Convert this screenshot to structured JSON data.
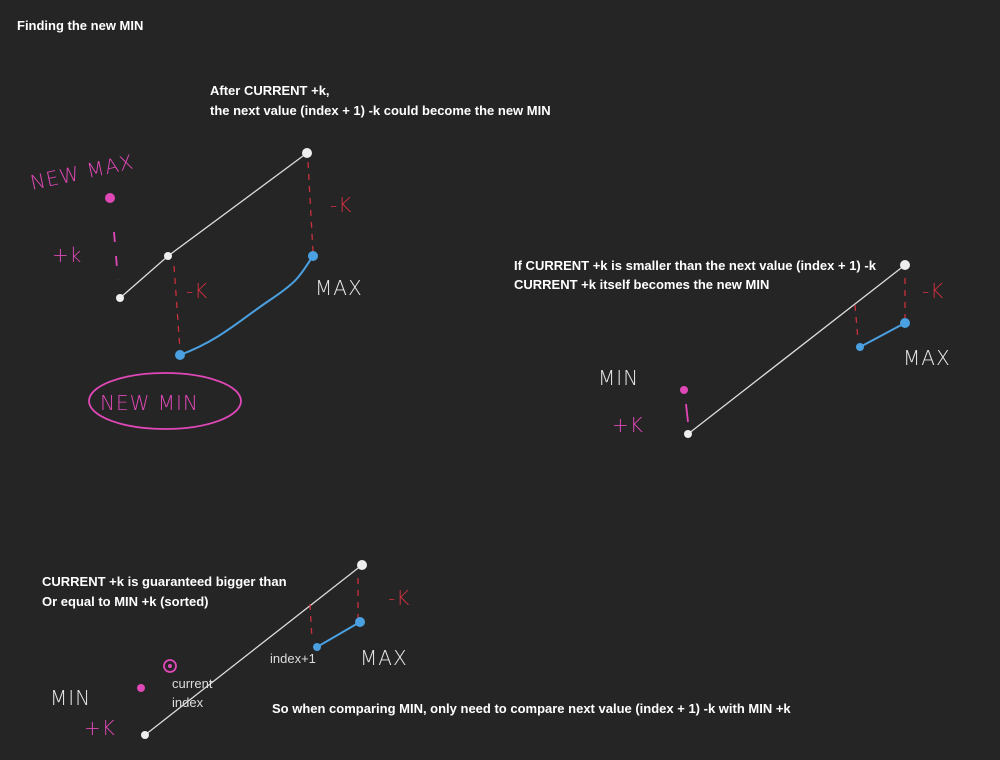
{
  "title": "Finding the new MIN",
  "scenes": [
    {
      "caption": [
        "After CURRENT +k,",
        "the next value (index + 1) -k could become the new MIN"
      ],
      "labels": {
        "new_max": "NEW MAX",
        "plus_k": "+k",
        "minus_k_top": "-K",
        "minus_k_mid": "-K",
        "max": "MAX",
        "new_min": "NEW MIN"
      }
    },
    {
      "caption": [
        "If CURRENT +k is smaller than the next value (index + 1) -k",
        "CURRENT +k itself becomes the new MIN"
      ],
      "labels": {
        "min": "MIN",
        "plus_k": "+K",
        "minus_k": "-K",
        "max": "MAX"
      }
    },
    {
      "caption": [
        "CURRENT +k is guaranteed bigger than",
        "Or equal to MIN +k (sorted)"
      ],
      "note": "So when comparing MIN, only need to compare next value (index + 1) -k with MIN +k",
      "labels": {
        "min": "MIN",
        "plus_k": "+K",
        "current": "current",
        "index": "index",
        "index_plus": "index+1",
        "minus_k": "-K",
        "max": "MAX"
      }
    }
  ]
}
